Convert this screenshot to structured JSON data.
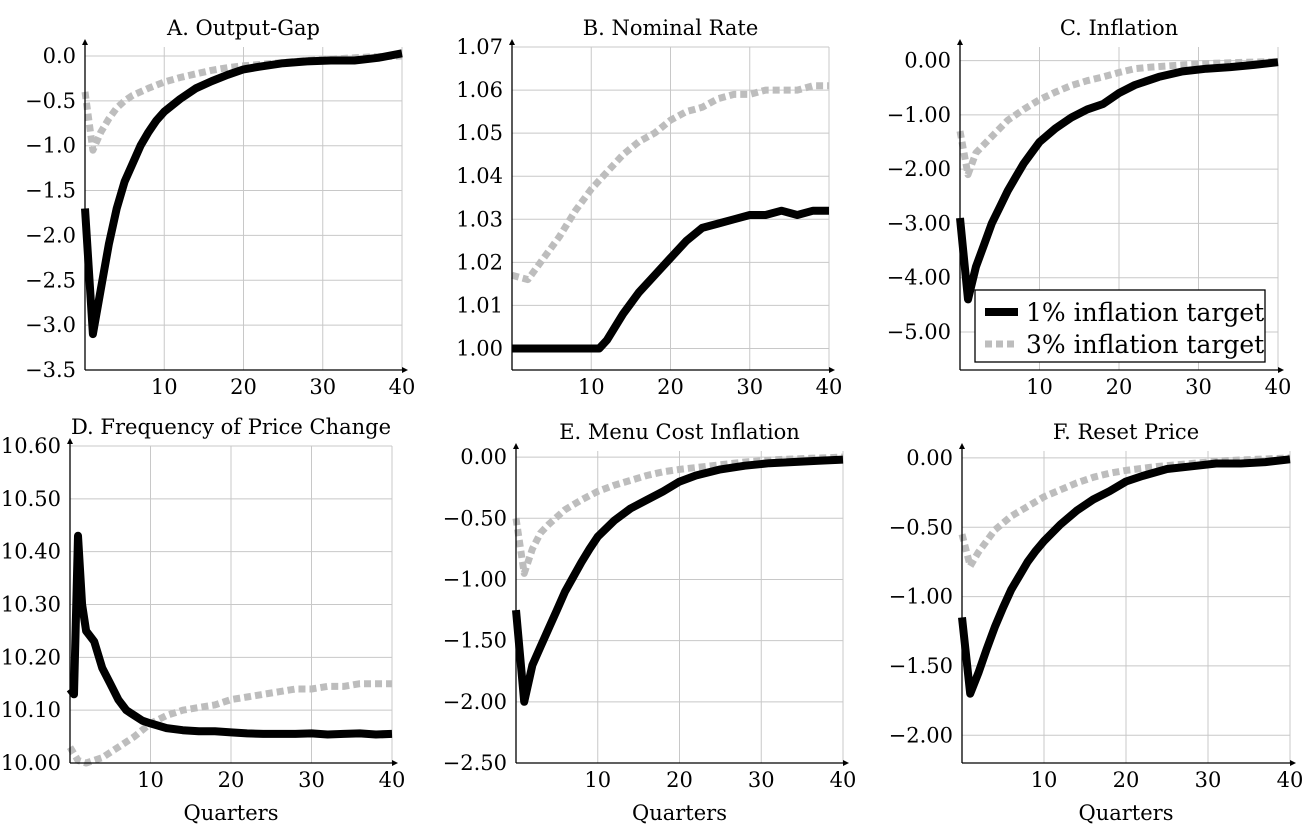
{
  "colors": {
    "target_1pct": "#000000",
    "target_3pct": "#bdbdbd",
    "grid": "#c8c8c8"
  },
  "legend": {
    "location": "inside panel C, bottom-right",
    "entries": [
      {
        "label": "1% inflation target",
        "style": "solid black"
      },
      {
        "label": "3% inflation target",
        "style": "dashed gray"
      }
    ]
  },
  "chart_data": [
    {
      "id": "A",
      "type": "line",
      "title": "A. Output-Gap",
      "xlabel": "",
      "xlim": [
        0,
        40
      ],
      "ylim": [
        -3.5,
        0.1
      ],
      "xticks": [
        10,
        20,
        30,
        40
      ],
      "xtick_labels": [
        "10",
        "20",
        "30",
        "40"
      ],
      "yticks": [
        0,
        -0.5,
        -1,
        -1.5,
        -2,
        -2.5,
        -3,
        -3.5
      ],
      "ytick_labels": [
        "0.0",
        "−0.5",
        "−1.0",
        "−1.5",
        "−2.0",
        "−2.5",
        "−3.0",
        "−3.5"
      ],
      "series": [
        {
          "name": "1% inflation target",
          "x": [
            0,
            1,
            2,
            3,
            4,
            5,
            6,
            7,
            8,
            9,
            10,
            12,
            14,
            16,
            18,
            20,
            22,
            25,
            28,
            31,
            34,
            37,
            40
          ],
          "y": [
            -1.7,
            -3.1,
            -2.6,
            -2.1,
            -1.7,
            -1.4,
            -1.2,
            -1.0,
            -0.85,
            -0.72,
            -0.62,
            -0.48,
            -0.36,
            -0.28,
            -0.21,
            -0.15,
            -0.12,
            -0.08,
            -0.06,
            -0.05,
            -0.05,
            -0.02,
            0.03
          ]
        },
        {
          "name": "3% inflation target",
          "x": [
            0,
            1,
            2,
            3,
            4,
            5,
            6,
            8,
            10,
            12,
            14,
            16,
            18,
            20,
            24,
            28,
            32,
            36,
            40
          ],
          "y": [
            -0.4,
            -1.05,
            -0.85,
            -0.7,
            -0.58,
            -0.5,
            -0.44,
            -0.36,
            -0.29,
            -0.24,
            -0.2,
            -0.16,
            -0.13,
            -0.11,
            -0.08,
            -0.05,
            -0.03,
            -0.01,
            0.0
          ]
        }
      ]
    },
    {
      "id": "B",
      "type": "line",
      "title": "B. Nominal Rate",
      "xlabel": "",
      "xlim": [
        0,
        40
      ],
      "ylim": [
        0.995,
        1.07
      ],
      "xticks": [
        10,
        20,
        30,
        40
      ],
      "xtick_labels": [
        "10",
        "20",
        "30",
        "40"
      ],
      "yticks": [
        1.0,
        1.01,
        1.02,
        1.03,
        1.04,
        1.05,
        1.06,
        1.07
      ],
      "ytick_labels": [
        "1.00",
        "1.01",
        "1.02",
        "1.03",
        "1.04",
        "1.05",
        "1.06",
        "1.07"
      ],
      "series": [
        {
          "name": "1% inflation target",
          "x": [
            0,
            11,
            12,
            14,
            16,
            18,
            20,
            22,
            24,
            26,
            28,
            30,
            32,
            34,
            36,
            38,
            40
          ],
          "y": [
            1.0,
            1.0,
            1.002,
            1.008,
            1.013,
            1.017,
            1.021,
            1.025,
            1.028,
            1.029,
            1.03,
            1.031,
            1.031,
            1.032,
            1.031,
            1.032,
            1.032
          ]
        },
        {
          "name": "3% inflation target",
          "x": [
            0,
            2,
            4,
            6,
            8,
            10,
            12,
            14,
            16,
            18,
            20,
            22,
            24,
            26,
            28,
            30,
            32,
            34,
            36,
            38,
            40
          ],
          "y": [
            1.017,
            1.016,
            1.021,
            1.026,
            1.032,
            1.037,
            1.041,
            1.045,
            1.048,
            1.05,
            1.053,
            1.055,
            1.056,
            1.058,
            1.059,
            1.059,
            1.06,
            1.06,
            1.06,
            1.061,
            1.061
          ]
        }
      ]
    },
    {
      "id": "C",
      "type": "line",
      "title": "C. Inflation",
      "xlabel": "",
      "xlim": [
        0,
        40
      ],
      "ylim": [
        -5.7,
        0.25
      ],
      "xticks": [
        10,
        20,
        30,
        40
      ],
      "xtick_labels": [
        "10",
        "20",
        "30",
        "40"
      ],
      "yticks": [
        0,
        -1,
        -2,
        -3,
        -4,
        -5
      ],
      "ytick_labels": [
        "0.00",
        "−1.00",
        "−2.00",
        "−3.00",
        "−4.00",
        "−5.00"
      ],
      "series": [
        {
          "name": "1% inflation target",
          "x": [
            0,
            1,
            2,
            3,
            4,
            5,
            6,
            7,
            8,
            9,
            10,
            12,
            14,
            16,
            18,
            20,
            22,
            25,
            28,
            31,
            34,
            37,
            40
          ],
          "y": [
            -2.9,
            -4.4,
            -3.8,
            -3.4,
            -3.0,
            -2.7,
            -2.4,
            -2.15,
            -1.9,
            -1.7,
            -1.5,
            -1.25,
            -1.05,
            -0.9,
            -0.8,
            -0.6,
            -0.45,
            -0.3,
            -0.2,
            -0.15,
            -0.12,
            -0.08,
            -0.03
          ]
        },
        {
          "name": "3% inflation target",
          "x": [
            0,
            1,
            2,
            3,
            4,
            6,
            8,
            10,
            12,
            14,
            16,
            18,
            20,
            22,
            24,
            28,
            32,
            36,
            40
          ],
          "y": [
            -1.3,
            -2.1,
            -1.7,
            -1.55,
            -1.4,
            -1.1,
            -0.9,
            -0.72,
            -0.58,
            -0.46,
            -0.37,
            -0.3,
            -0.22,
            -0.15,
            -0.12,
            -0.08,
            -0.05,
            -0.03,
            -0.02
          ]
        }
      ]
    },
    {
      "id": "D",
      "type": "line",
      "title": "D. Frequency of Price Change",
      "xlabel": "Quarters",
      "xlim": [
        0,
        40
      ],
      "ylim": [
        10.0,
        10.6
      ],
      "xticks": [
        10,
        20,
        30,
        40
      ],
      "xtick_labels": [
        "10",
        "20",
        "30",
        "40"
      ],
      "yticks": [
        10.0,
        10.1,
        10.2,
        10.3,
        10.4,
        10.5,
        10.6
      ],
      "ytick_labels": [
        "10.00",
        "10.10",
        "10.20",
        "10.30",
        "10.40",
        "10.50",
        "10.60"
      ],
      "series": [
        {
          "name": "1% inflation target",
          "x": [
            0,
            0.5,
            1,
            1.5,
            2,
            3,
            4,
            5,
            6,
            7,
            8,
            9,
            10,
            12,
            14,
            16,
            18,
            20,
            22,
            24,
            26,
            28,
            30,
            32,
            34,
            36,
            38,
            40
          ],
          "y": [
            10.14,
            10.13,
            10.43,
            10.3,
            10.25,
            10.23,
            10.18,
            10.15,
            10.12,
            10.1,
            10.09,
            10.08,
            10.075,
            10.066,
            10.062,
            10.06,
            10.06,
            10.058,
            10.056,
            10.055,
            10.055,
            10.055,
            10.056,
            10.054,
            10.055,
            10.056,
            10.054,
            10.055
          ]
        },
        {
          "name": "3% inflation target",
          "x": [
            0,
            1,
            2,
            4,
            6,
            8,
            10,
            12,
            14,
            16,
            18,
            20,
            22,
            24,
            26,
            28,
            30,
            32,
            34,
            36,
            38,
            40
          ],
          "y": [
            10.03,
            10.005,
            10.0,
            10.01,
            10.03,
            10.05,
            10.075,
            10.09,
            10.1,
            10.105,
            10.11,
            10.12,
            10.125,
            10.13,
            10.135,
            10.14,
            10.14,
            10.145,
            10.145,
            10.15,
            10.15,
            10.15
          ]
        }
      ]
    },
    {
      "id": "E",
      "type": "line",
      "title": "E. Menu Cost Inflation",
      "xlabel": "Quarters",
      "xlim": [
        0,
        40
      ],
      "ylim": [
        -2.5,
        0.05
      ],
      "xticks": [
        10,
        20,
        30,
        40
      ],
      "xtick_labels": [
        "10",
        "20",
        "30",
        "40"
      ],
      "yticks": [
        0,
        -0.5,
        -1,
        -1.5,
        -2,
        -2.5
      ],
      "ytick_labels": [
        "0.00",
        "−0.50",
        "−1.00",
        "−1.50",
        "−2.00",
        "−2.50"
      ],
      "series": [
        {
          "name": "1% inflation target",
          "x": [
            0,
            1,
            2,
            3,
            4,
            5,
            6,
            7,
            8,
            9,
            10,
            12,
            14,
            16,
            18,
            20,
            22,
            25,
            28,
            31,
            34,
            37,
            40
          ],
          "y": [
            -1.25,
            -2.0,
            -1.7,
            -1.55,
            -1.4,
            -1.25,
            -1.1,
            -0.98,
            -0.86,
            -0.75,
            -0.65,
            -0.52,
            -0.42,
            -0.35,
            -0.28,
            -0.2,
            -0.15,
            -0.1,
            -0.07,
            -0.05,
            -0.04,
            -0.03,
            -0.02
          ]
        },
        {
          "name": "3% inflation target",
          "x": [
            0,
            1,
            2,
            3,
            4,
            6,
            8,
            10,
            12,
            14,
            16,
            18,
            20,
            24,
            28,
            32,
            36,
            40
          ],
          "y": [
            -0.5,
            -0.95,
            -0.75,
            -0.62,
            -0.55,
            -0.43,
            -0.35,
            -0.28,
            -0.23,
            -0.19,
            -0.15,
            -0.12,
            -0.1,
            -0.07,
            -0.04,
            -0.02,
            -0.01,
            0.0
          ]
        }
      ]
    },
    {
      "id": "F",
      "type": "line",
      "title": "F. Reset Price",
      "xlabel": "Quarters",
      "xlim": [
        0,
        40
      ],
      "ylim": [
        -2.2,
        0.05
      ],
      "xticks": [
        10,
        20,
        30,
        40
      ],
      "xtick_labels": [
        "10",
        "20",
        "30",
        "40"
      ],
      "yticks": [
        0,
        -0.5,
        -1,
        -1.5,
        -2
      ],
      "ytick_labels": [
        "0.00",
        "−0.50",
        "−1.00",
        "−1.50",
        "−2.00"
      ],
      "series": [
        {
          "name": "1% inflation target",
          "x": [
            0,
            1,
            2,
            3,
            4,
            5,
            6,
            7,
            8,
            9,
            10,
            12,
            14,
            16,
            18,
            20,
            22,
            25,
            28,
            31,
            34,
            37,
            40
          ],
          "y": [
            -1.15,
            -1.7,
            -1.55,
            -1.38,
            -1.22,
            -1.08,
            -0.95,
            -0.85,
            -0.75,
            -0.67,
            -0.6,
            -0.48,
            -0.38,
            -0.3,
            -0.24,
            -0.17,
            -0.13,
            -0.08,
            -0.06,
            -0.04,
            -0.04,
            -0.03,
            -0.01
          ]
        },
        {
          "name": "3% inflation target",
          "x": [
            0,
            1,
            2,
            3,
            4,
            6,
            8,
            10,
            12,
            14,
            16,
            18,
            20,
            24,
            28,
            32,
            36,
            40
          ],
          "y": [
            -0.55,
            -0.78,
            -0.68,
            -0.6,
            -0.52,
            -0.42,
            -0.35,
            -0.28,
            -0.23,
            -0.18,
            -0.14,
            -0.11,
            -0.09,
            -0.06,
            -0.04,
            -0.02,
            -0.01,
            0.0
          ]
        }
      ]
    }
  ]
}
